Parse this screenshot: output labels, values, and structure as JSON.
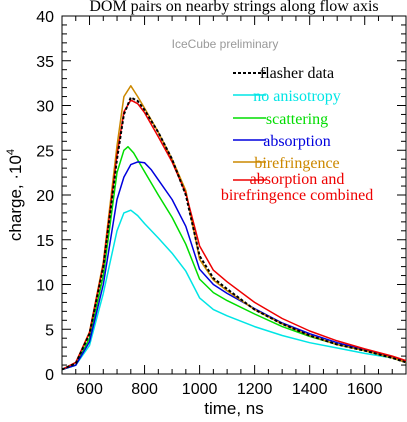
{
  "chart_data": {
    "type": "line",
    "title": "DOM pairs on nearby strings along flow axis",
    "watermark": "IceCube preliminary",
    "xlabel": "time, ns",
    "ylabel": "charge, ·10",
    "ylabel_exponent": "4",
    "xlim": [
      500,
      1750
    ],
    "ylim": [
      0,
      40
    ],
    "x_ticks": [
      600,
      800,
      1000,
      1200,
      1400,
      1600
    ],
    "x_tick_labels": [
      "600",
      "800",
      "1000",
      "1200",
      "1400",
      "1600"
    ],
    "y_ticks": [
      0,
      5,
      10,
      15,
      20,
      25,
      30,
      35,
      40
    ],
    "y_tick_labels": [
      "0",
      "5",
      "10",
      "15",
      "20",
      "25",
      "30",
      "35",
      "40"
    ],
    "grid": false,
    "legend_position": "top-right",
    "series": [
      {
        "name": "flasher data",
        "color": "#000000",
        "dashed": true,
        "points": [
          [
            500,
            0.5
          ],
          [
            550,
            1.2
          ],
          [
            600,
            4.5
          ],
          [
            650,
            12
          ],
          [
            700,
            24
          ],
          [
            725,
            29
          ],
          [
            750,
            30.9
          ],
          [
            775,
            30.5
          ],
          [
            800,
            29.5
          ],
          [
            850,
            27
          ],
          [
            900,
            24
          ],
          [
            950,
            20
          ],
          [
            1000,
            13.2
          ],
          [
            1050,
            10.7
          ],
          [
            1100,
            9.5
          ],
          [
            1200,
            7.2
          ],
          [
            1300,
            5.6
          ],
          [
            1400,
            4.3
          ],
          [
            1500,
            3.3
          ],
          [
            1600,
            2.6
          ],
          [
            1700,
            1.8
          ],
          [
            1750,
            1.3
          ]
        ]
      },
      {
        "name": "no anisotropy",
        "color": "#00e5e5",
        "points": [
          [
            500,
            0.5
          ],
          [
            550,
            1
          ],
          [
            600,
            3.2
          ],
          [
            650,
            9
          ],
          [
            700,
            16
          ],
          [
            725,
            18
          ],
          [
            750,
            18.3
          ],
          [
            775,
            17.7
          ],
          [
            800,
            16.8
          ],
          [
            850,
            15.2
          ],
          [
            900,
            13.5
          ],
          [
            950,
            11.5
          ],
          [
            1000,
            8.5
          ],
          [
            1050,
            7.2
          ],
          [
            1100,
            6.5
          ],
          [
            1200,
            5.3
          ],
          [
            1300,
            4.3
          ],
          [
            1400,
            3.5
          ],
          [
            1500,
            2.9
          ],
          [
            1600,
            2.3
          ],
          [
            1700,
            1.8
          ],
          [
            1750,
            1.3
          ]
        ]
      },
      {
        "name": "scattering",
        "color": "#00dd00",
        "points": [
          [
            500,
            0.5
          ],
          [
            550,
            1
          ],
          [
            600,
            4
          ],
          [
            650,
            11
          ],
          [
            700,
            22.5
          ],
          [
            725,
            25
          ],
          [
            740,
            25.4
          ],
          [
            760,
            24.7
          ],
          [
            800,
            22.6
          ],
          [
            850,
            20
          ],
          [
            900,
            17.5
          ],
          [
            950,
            14.5
          ],
          [
            1000,
            10.6
          ],
          [
            1050,
            9.1
          ],
          [
            1100,
            8.2
          ],
          [
            1200,
            6.7
          ],
          [
            1300,
            5.3
          ],
          [
            1400,
            4.2
          ],
          [
            1500,
            3.3
          ],
          [
            1600,
            2.6
          ],
          [
            1700,
            1.8
          ],
          [
            1750,
            1.3
          ]
        ]
      },
      {
        "name": "absorption",
        "color": "#0000dd",
        "points": [
          [
            500,
            0.5
          ],
          [
            550,
            1
          ],
          [
            600,
            3.6
          ],
          [
            650,
            10
          ],
          [
            700,
            19.5
          ],
          [
            725,
            22
          ],
          [
            750,
            23.4
          ],
          [
            775,
            23.7
          ],
          [
            800,
            23.6
          ],
          [
            825,
            22.8
          ],
          [
            850,
            21.7
          ],
          [
            900,
            19.5
          ],
          [
            950,
            16.5
          ],
          [
            1000,
            11.7
          ],
          [
            1050,
            10
          ],
          [
            1100,
            9
          ],
          [
            1200,
            7.3
          ],
          [
            1300,
            5.7
          ],
          [
            1400,
            4.5
          ],
          [
            1500,
            3.5
          ],
          [
            1600,
            2.7
          ],
          [
            1700,
            1.9
          ],
          [
            1750,
            1.4
          ]
        ]
      },
      {
        "name": "birefringence",
        "color": "#cc8800",
        "points": [
          [
            500,
            0.5
          ],
          [
            550,
            1.3
          ],
          [
            600,
            4.7
          ],
          [
            650,
            12.5
          ],
          [
            700,
            25.5
          ],
          [
            725,
            31
          ],
          [
            750,
            32.2
          ],
          [
            775,
            31
          ],
          [
            800,
            29.7
          ],
          [
            850,
            27
          ],
          [
            900,
            24
          ],
          [
            950,
            20.5
          ],
          [
            1000,
            12.8
          ],
          [
            1050,
            10.5
          ],
          [
            1100,
            9.3
          ],
          [
            1200,
            7.2
          ],
          [
            1300,
            5.6
          ],
          [
            1400,
            4.3
          ],
          [
            1500,
            3.3
          ],
          [
            1600,
            2.6
          ],
          [
            1700,
            1.8
          ],
          [
            1750,
            1.3
          ]
        ]
      },
      {
        "name": "absorption and birefringence combined",
        "color": "#ee0000",
        "points": [
          [
            500,
            0.5
          ],
          [
            550,
            1.3
          ],
          [
            600,
            4.6
          ],
          [
            650,
            12.2
          ],
          [
            700,
            24.5
          ],
          [
            725,
            29.3
          ],
          [
            750,
            30.6
          ],
          [
            775,
            30.2
          ],
          [
            800,
            29.2
          ],
          [
            850,
            26.5
          ],
          [
            900,
            23.7
          ],
          [
            950,
            20.2
          ],
          [
            1000,
            14.3
          ],
          [
            1050,
            11.6
          ],
          [
            1100,
            10.3
          ],
          [
            1200,
            8
          ],
          [
            1300,
            6.2
          ],
          [
            1400,
            4.8
          ],
          [
            1500,
            3.7
          ],
          [
            1600,
            2.8
          ],
          [
            1700,
            2
          ],
          [
            1750,
            1.5
          ]
        ]
      }
    ],
    "legend_labels": [
      "flasher data",
      "no anisotropy",
      "scattering",
      "absorption",
      "birefringence",
      "absorption and",
      "birefringence combined"
    ]
  }
}
